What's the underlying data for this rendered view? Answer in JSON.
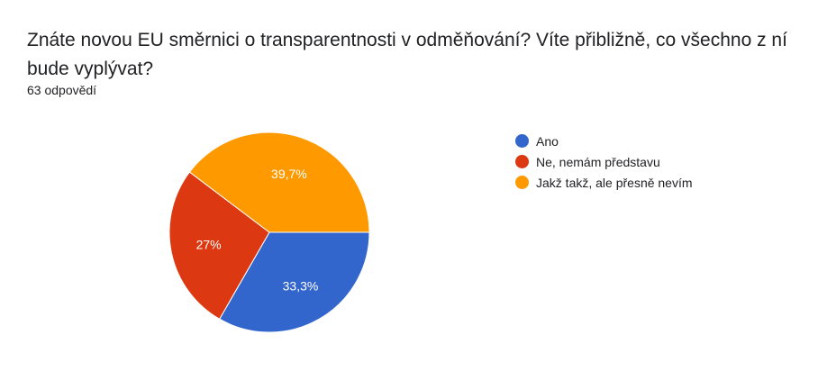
{
  "question": {
    "title": "Znáte novou EU směrnici o transparentnosti v odměňování? Víte přibližně, co všechno z ní bude vyplývat?",
    "responses": "63 odpovědí"
  },
  "chart_data": {
    "type": "pie",
    "legend_position": "right",
    "slices": [
      {
        "label": "Ano",
        "value": 33.3,
        "display": "33,3%",
        "color": "#3366cc"
      },
      {
        "label": "Ne, nemám představu",
        "value": 27.0,
        "display": "27%",
        "color": "#dc3912"
      },
      {
        "label": "Jakž takž, ale přesně nevím",
        "value": 39.7,
        "display": "39,7%",
        "color": "#ff9900"
      }
    ]
  }
}
